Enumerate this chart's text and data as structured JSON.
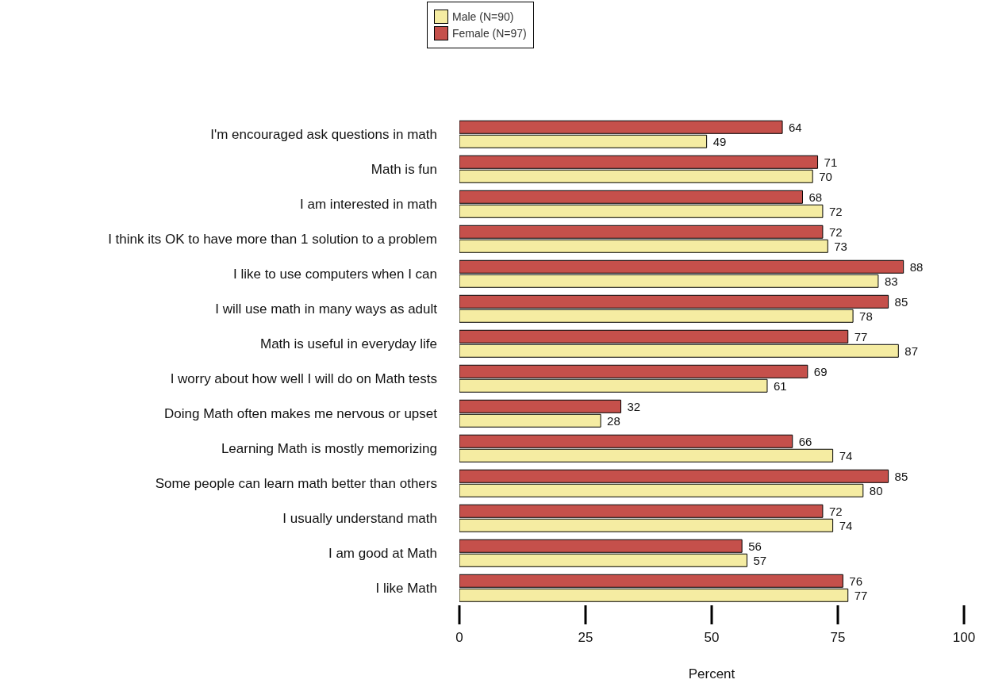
{
  "chart_data": {
    "type": "bar",
    "orientation": "horizontal",
    "xlabel": "Percent",
    "categories": [
      "I'm encouraged ask questions in math",
      "Math is fun",
      "I am interested in math",
      "I think its OK to have more than 1 solution to a problem",
      "I like to use computers when I can",
      "I will use math in many ways as adult",
      "Math is useful in everyday life",
      "I worry about how well I will do on Math tests",
      "Doing Math often makes me nervous or upset",
      "Learning Math is mostly memorizing",
      "Some people can learn math better than others",
      "I usually understand math",
      "I am good at Math",
      "I like Math"
    ],
    "series": [
      {
        "name": "Male (N=90)",
        "color": "#f5eca2",
        "values": [
          49,
          70,
          72,
          73,
          83,
          78,
          87,
          61,
          28,
          74,
          80,
          74,
          57,
          77
        ]
      },
      {
        "name": "Female (N=97)",
        "color": "#c5504b",
        "values": [
          64,
          71,
          68,
          72,
          88,
          85,
          77,
          69,
          32,
          66,
          85,
          72,
          56,
          76
        ]
      }
    ],
    "xlim": [
      0,
      100
    ],
    "xticks": [
      0,
      25,
      50,
      75,
      100
    ],
    "data_labels": true,
    "legend": "top",
    "grid": false
  }
}
